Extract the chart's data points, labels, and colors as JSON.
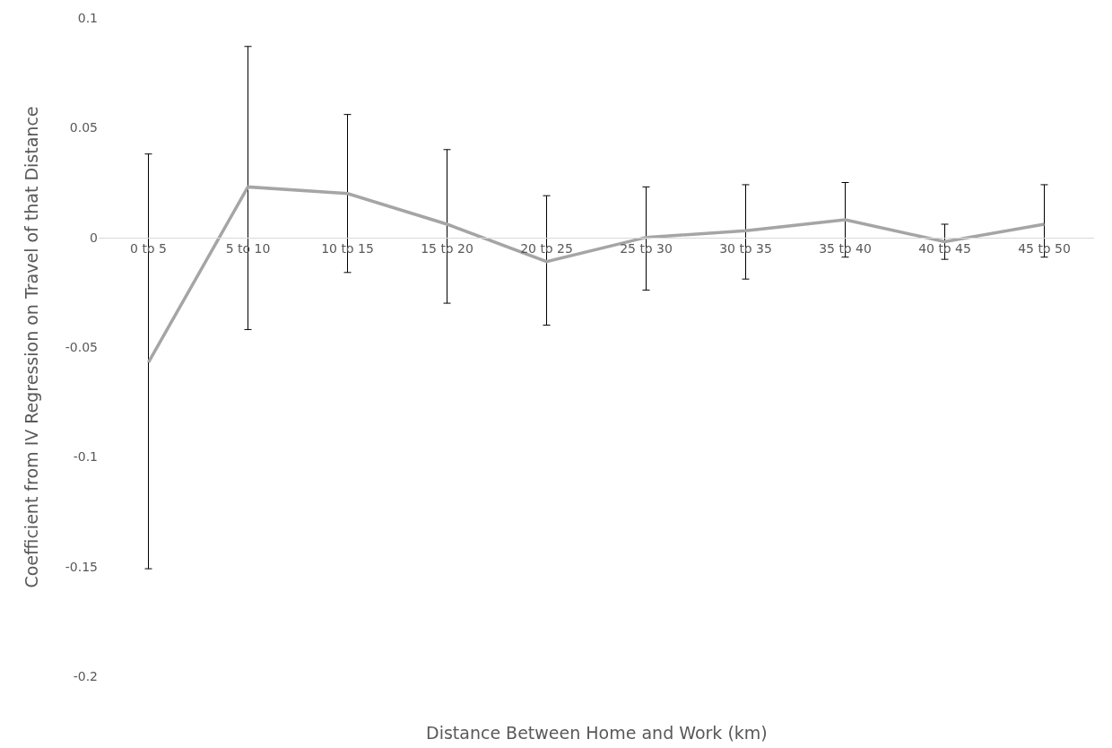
{
  "chart_data": {
    "type": "line",
    "xlabel": "Distance Between Home and Work (km)",
    "ylabel": "Coefficient from IV Regression on Travel of that Distance",
    "categories": [
      "0 to 5",
      "5 to 10",
      "10 to 15",
      "15 to 20",
      "20 to 25",
      "25 to 30",
      "30 to 35",
      "35 to 40",
      "40 to 45",
      "45 to 50"
    ],
    "series": [
      {
        "color": "#a5a5a5",
        "values": [
          -0.057,
          0.023,
          0.02,
          0.006,
          -0.011,
          0.0,
          0.003,
          0.008,
          -0.002,
          0.006
        ],
        "errors": [
          [
            -0.151,
            0.038
          ],
          [
            -0.042,
            0.087
          ],
          [
            -0.016,
            0.056
          ],
          [
            -0.03,
            0.04
          ],
          [
            -0.04,
            0.019
          ],
          [
            -0.024,
            0.023
          ],
          [
            -0.019,
            0.024
          ],
          [
            -0.009,
            0.025
          ],
          [
            -0.01,
            0.006
          ],
          [
            -0.009,
            0.024
          ]
        ]
      }
    ],
    "ylim": [
      -0.2,
      0.1
    ],
    "yticks": [
      -0.2,
      -0.15,
      -0.1,
      -0.05,
      0,
      0.05,
      0.1
    ],
    "marker": "none",
    "line_style": "solid"
  }
}
